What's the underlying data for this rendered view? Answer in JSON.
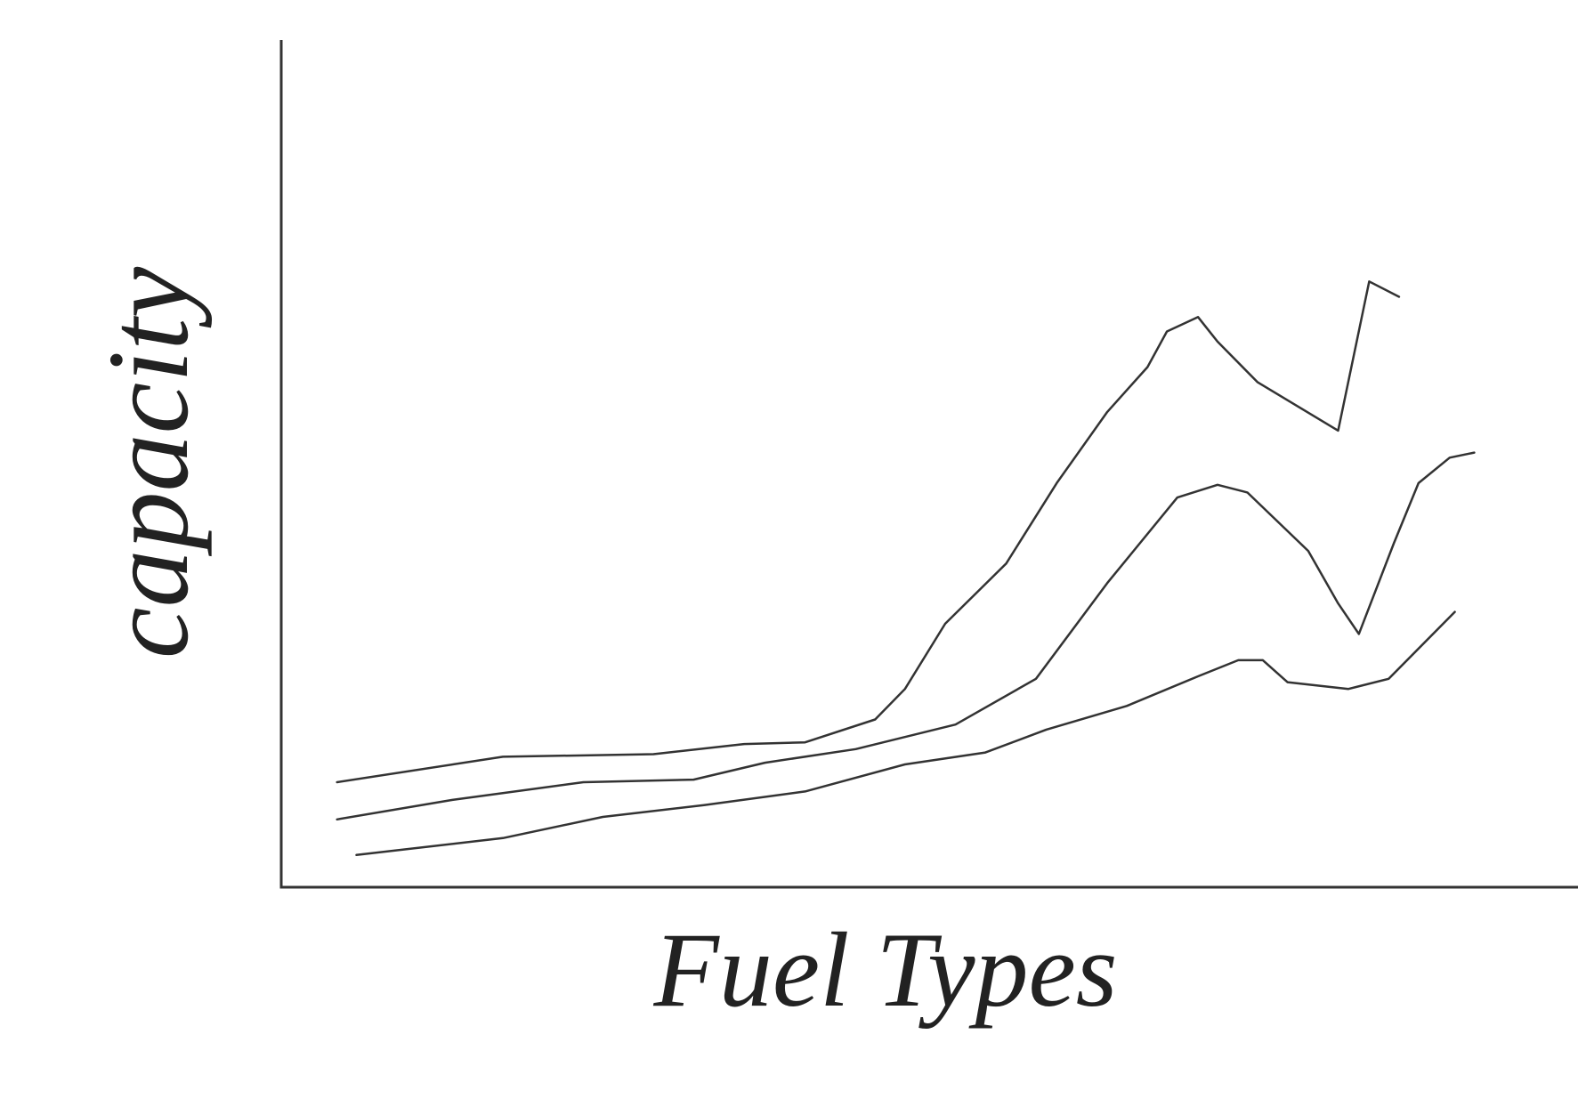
{
  "chart_data": {
    "type": "line",
    "x_label": "Fuel Types",
    "y_label": "capacity",
    "xlim": [
      0,
      100
    ],
    "ylim": [
      0,
      100
    ],
    "grid": false,
    "series": [
      {
        "color": "#333333",
        "x": [
          4.3,
          17.1,
          28.7,
          35.7,
          40.4,
          45.8,
          48.1,
          51.2,
          55.9,
          59.8,
          63.7,
          66.8,
          68.3,
          70.7,
          72.2,
          75.3,
          81.5,
          83.9,
          86.2
        ],
        "values": [
          12.4,
          15.4,
          15.7,
          16.9,
          17.1,
          19.8,
          23.4,
          31.1,
          38.2,
          47.7,
          56.1,
          61.4,
          65.6,
          67.3,
          64.4,
          59.6,
          53.9,
          71.5,
          69.7
        ]
      },
      {
        "color": "#333333",
        "x": [
          4.3,
          13.2,
          23.3,
          31.8,
          37.3,
          44.3,
          52.0,
          58.2,
          63.7,
          69.1,
          72.2,
          74.5,
          79.2,
          81.5,
          83.1,
          85.8,
          87.7,
          90.1,
          92.0
        ],
        "values": [
          8.0,
          10.3,
          12.4,
          12.7,
          14.7,
          16.3,
          19.2,
          24.6,
          35.9,
          46.0,
          47.5,
          46.6,
          39.7,
          33.5,
          29.9,
          40.6,
          47.7,
          50.7,
          51.3
        ]
      },
      {
        "color": "#333333",
        "x": [
          5.8,
          17.1,
          24.8,
          32.6,
          40.4,
          48.1,
          54.3,
          59.0,
          65.2,
          70.7,
          73.8,
          75.7,
          77.6,
          82.3,
          85.4,
          90.5
        ],
        "values": [
          3.8,
          5.8,
          8.3,
          9.7,
          11.3,
          14.5,
          15.9,
          18.6,
          21.4,
          24.9,
          26.8,
          26.8,
          24.2,
          23.4,
          24.6,
          32.5
        ]
      }
    ]
  }
}
